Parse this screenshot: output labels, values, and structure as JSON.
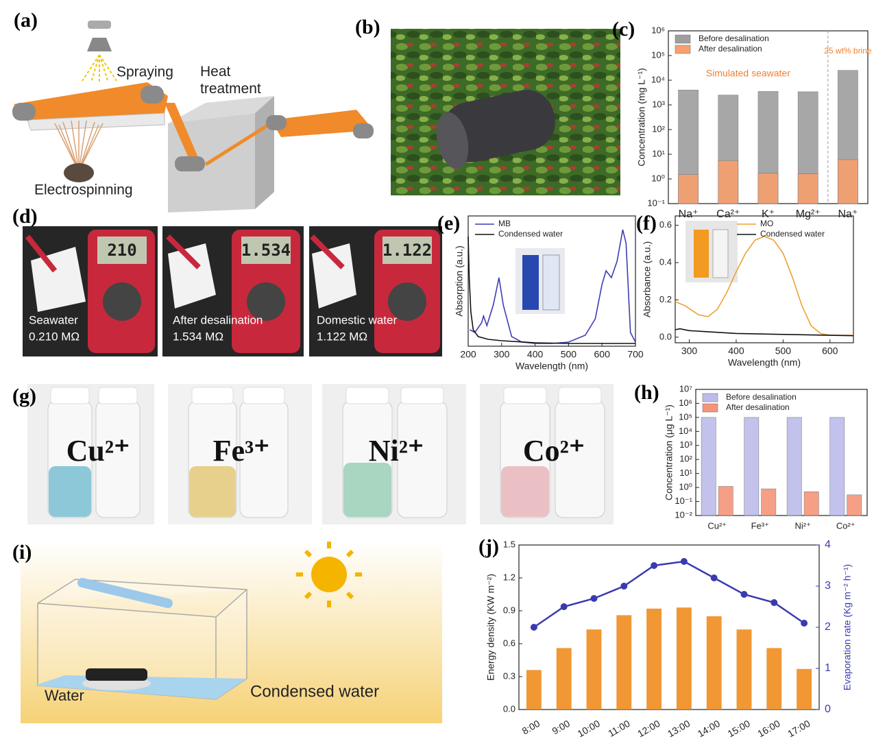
{
  "panel_labels": [
    "(a)",
    "(b)",
    "(c)",
    "(d)",
    "(e)",
    "(f)",
    "(g)",
    "(h)",
    "(i)",
    "(j)"
  ],
  "schematic": {
    "spraying": "Spraying",
    "heat_treatment": "Heat treatment",
    "electrospinning": "Electrospinning"
  },
  "meters": [
    {
      "display": "210",
      "label": "Seawater",
      "resistance": "0.210 MΩ"
    },
    {
      "display": "1.534",
      "label": "After desalination",
      "resistance": "1.534 MΩ"
    },
    {
      "display": "1.122",
      "label": "Domestic water",
      "resistance": "1.122 MΩ"
    }
  ],
  "vials": [
    "Cu²⁺",
    "Fe³⁺",
    "Ni²⁺",
    "Co²⁺"
  ],
  "device": {
    "water": "Water",
    "condensed": "Condensed water"
  },
  "chart_data": [
    {
      "type": "bar",
      "ylabel": "Concentration (mg L⁻¹)",
      "categories": [
        "Na⁺",
        "Ca²⁺",
        "K⁺",
        "Mg²⁺",
        "Na⁺"
      ],
      "log_y": true,
      "ylim": [
        0.1,
        1000000
      ],
      "yticks": [
        {
          "value": 0.1,
          "label": "10⁻¹"
        },
        {
          "value": 1,
          "label": "10⁰"
        },
        {
          "value": 10,
          "label": "10¹"
        },
        {
          "value": 100,
          "label": "10²"
        },
        {
          "value": 1000,
          "label": "10³"
        },
        {
          "value": 10000,
          "label": "10⁴"
        },
        {
          "value": 100000,
          "label": "10⁵"
        },
        {
          "value": 1000000,
          "label": "10⁶"
        }
      ],
      "series": [
        {
          "name": "Before desalination",
          "color": "#9e9e9e",
          "values": [
            4000,
            2500,
            3500,
            3400,
            25000
          ]
        },
        {
          "name": "After desalination",
          "color": "#f7a06e",
          "values": [
            1.5,
            5.5,
            1.7,
            1.6,
            6
          ]
        }
      ],
      "bar_layout": "overlap",
      "legend": "upper left",
      "annotation_color": "#f08030",
      "annotations": [
        "Simulated seawater",
        "25 wt% brine"
      ]
    },
    {
      "type": "line",
      "xlabel": "Wavelength (nm)",
      "ylabel": "Absorption (a.u.)",
      "xlim": [
        200,
        700
      ],
      "xticks": [
        200,
        300,
        400,
        500,
        600,
        700
      ],
      "ylim": [
        0,
        0.95
      ],
      "legend": "upper left",
      "series": [
        {
          "name": "MB",
          "color": "#3c3cb4",
          "x": [
            205,
            220,
            240,
            246,
            256,
            275,
            292,
            305,
            330,
            360,
            400,
            450,
            500,
            550,
            580,
            600,
            612,
            628,
            645,
            662,
            672,
            685,
            700
          ],
          "values": [
            0.12,
            0.1,
            0.17,
            0.22,
            0.15,
            0.3,
            0.5,
            0.3,
            0.07,
            0.03,
            0.02,
            0.02,
            0.03,
            0.08,
            0.2,
            0.45,
            0.55,
            0.5,
            0.62,
            0.85,
            0.75,
            0.1,
            0.03
          ]
        },
        {
          "name": "Condensed water",
          "color": "#111111",
          "x": [
            200,
            203,
            208,
            215,
            230,
            260,
            300,
            400,
            500,
            600,
            700
          ],
          "values": [
            0.8,
            0.5,
            0.25,
            0.12,
            0.07,
            0.05,
            0.04,
            0.025,
            0.02,
            0.02,
            0.02
          ]
        }
      ]
    },
    {
      "type": "line",
      "xlabel": "Wavelength (nm)",
      "ylabel": "Absorbance (a.u.)",
      "xlim": [
        270,
        650
      ],
      "xticks": [
        300,
        400,
        500,
        600
      ],
      "ylim": [
        -0.03,
        0.65
      ],
      "yticks": [
        {
          "value": 0,
          "label": "0.0"
        },
        0.2,
        0.4,
        0.6
      ],
      "legend": "upper right",
      "series": [
        {
          "name": "MO",
          "color": "#f0a030",
          "x": [
            270,
            290,
            320,
            340,
            360,
            380,
            400,
            420,
            440,
            460,
            480,
            500,
            520,
            540,
            560,
            580,
            600,
            650
          ],
          "values": [
            0.19,
            0.17,
            0.12,
            0.11,
            0.15,
            0.24,
            0.35,
            0.45,
            0.52,
            0.54,
            0.52,
            0.45,
            0.32,
            0.17,
            0.06,
            0.02,
            0.01,
            0.01
          ]
        },
        {
          "name": "Condensed water",
          "color": "#111111",
          "x": [
            270,
            280,
            300,
            400,
            500,
            600,
            650
          ],
          "values": [
            0.04,
            0.045,
            0.035,
            0.02,
            0.015,
            0.01,
            0.008
          ]
        }
      ]
    },
    {
      "type": "bar",
      "ylabel": "Concentration (μg L⁻¹)",
      "categories": [
        "Cu²⁺",
        "Fe³⁺",
        "Ni²⁺",
        "Co²⁺"
      ],
      "log_y": true,
      "ylim": [
        0.01,
        10000000
      ],
      "yticks": [
        {
          "value": 0.01,
          "label": "10⁻²"
        },
        {
          "value": 0.1,
          "label": "10⁻¹"
        },
        {
          "value": 1,
          "label": "10⁰"
        },
        {
          "value": 10,
          "label": "10¹"
        },
        {
          "value": 100,
          "label": "10²"
        },
        {
          "value": 1000,
          "label": "10³"
        },
        {
          "value": 10000,
          "label": "10⁴"
        },
        {
          "value": 100000,
          "label": "10⁵"
        },
        {
          "value": 1000000,
          "label": "10⁶"
        },
        {
          "value": 10000000,
          "label": "10⁷"
        }
      ],
      "series": [
        {
          "name": "Before desalination",
          "color": "#bcbcec",
          "values": [
            100000,
            100000,
            100000,
            100000
          ]
        },
        {
          "name": "After desalination",
          "color": "#f4957a",
          "values": [
            1.2,
            0.8,
            0.5,
            0.3
          ]
        }
      ],
      "bar_layout": "grouped",
      "legend": "upper left"
    },
    {
      "type": "bar",
      "ylabel": "Energy density (KW m⁻²)",
      "y2label": "Evaporation rate (Kg m⁻² h⁻¹)",
      "categories": [
        "8:00",
        "9:00",
        "10:00",
        "11:00",
        "12:00",
        "13:00",
        "14:00",
        "15:00",
        "16:00",
        "17:00"
      ],
      "ylim": [
        0,
        1.5
      ],
      "yticks": [
        {
          "value": 0,
          "label": "0.0"
        },
        0.3,
        0.6,
        0.9,
        1.2,
        1.5
      ],
      "y2lim": [
        0,
        4
      ],
      "y2ticks": [
        0,
        1,
        2,
        3,
        4
      ],
      "series": [
        {
          "color": "#f08c1e",
          "values": [
            0.36,
            0.56,
            0.73,
            0.86,
            0.92,
            0.93,
            0.85,
            0.73,
            0.56,
            0.37
          ]
        },
        {
          "color": "#3a3ab0",
          "axis": "y2",
          "values": [
            2.0,
            2.5,
            2.7,
            3.0,
            3.5,
            3.6,
            3.2,
            2.8,
            2.6,
            2.1
          ]
        }
      ]
    }
  ]
}
